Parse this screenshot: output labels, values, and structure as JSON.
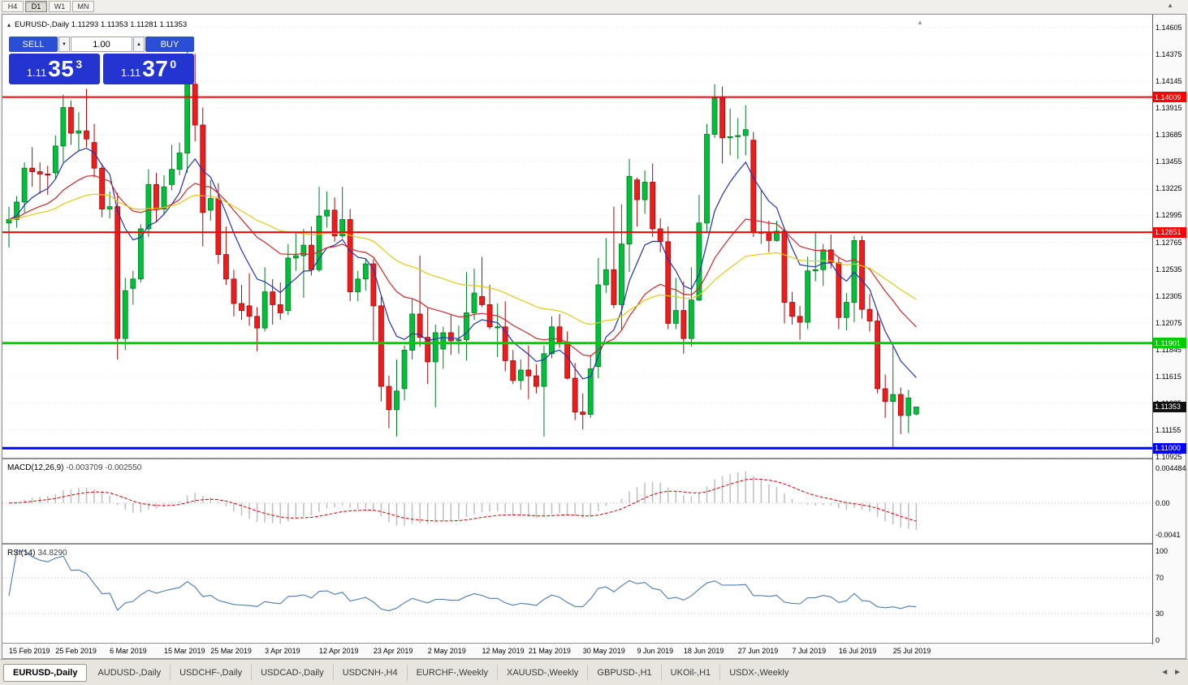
{
  "toolbar": {
    "timeframes": [
      {
        "label": "H4",
        "active": false
      },
      {
        "label": "D1",
        "active": true
      },
      {
        "label": "W1",
        "active": false
      },
      {
        "label": "MN",
        "active": false
      }
    ]
  },
  "icons": {
    "panel_toggle": "▴",
    "scroll_up": "▲",
    "shift_marker": "▲",
    "vol_down": "▼",
    "vol_up": "▲",
    "tab_left": "◄",
    "tab_right": "►"
  },
  "chart_header": {
    "title": "EURUSD-,Daily 1.11293 1.11353 1.11281 1.11353"
  },
  "trade_panel": {
    "sell_label": "SELL",
    "buy_label": "BUY",
    "volume": "1.00",
    "sell_price_main": "1.11",
    "sell_price_pips": "35",
    "sell_price_pt": "3",
    "buy_price_main": "1.11",
    "buy_price_pips": "37",
    "buy_price_pt": "0"
  },
  "price_axis": {
    "max": 1.14605,
    "min": 1.10925,
    "ticks": [
      "1.14605",
      "1.14375",
      "1.14145",
      "1.13915",
      "1.13685",
      "1.13455",
      "1.13225",
      "1.12995",
      "1.12765",
      "1.12535",
      "1.12305",
      "1.12075",
      "1.11845",
      "1.11615",
      "1.11385",
      "1.11155",
      "1.10925"
    ],
    "current_badge": {
      "label": "1.11353",
      "value": 1.11353,
      "bg": "#111111"
    }
  },
  "levels": [
    {
      "label": "1.14009",
      "value": 1.14009,
      "color": "#ff0000",
      "width": 2
    },
    {
      "label": "1.12851",
      "value": 1.12851,
      "color": "#ff0000",
      "width": 2
    },
    {
      "label": "1.11901",
      "value": 1.11901,
      "color": "#00cc00",
      "width": 3
    },
    {
      "label": "1.11000",
      "value": 1.11,
      "color": "#0000ff",
      "width": 3
    }
  ],
  "macd_panel": {
    "label": "MACD(12,26,9)",
    "values": "-0.003709 -0.002550",
    "axis": [
      {
        "label": "0.004484",
        "value": 0.004484
      },
      {
        "label": "0.00",
        "value": 0
      },
      {
        "label": "-0.0041",
        "value": -0.0041
      }
    ]
  },
  "rsi_panel": {
    "label": "RSI(14)",
    "value": "34.8290",
    "axis": [
      {
        "label": "100",
        "value": 100
      },
      {
        "label": "70",
        "value": 70
      },
      {
        "label": "30",
        "value": 30
      },
      {
        "label": "0",
        "value": 0
      }
    ],
    "levels": [
      70,
      30
    ]
  },
  "chart_data": {
    "type": "candlestick",
    "title": "EURUSD-,Daily",
    "ylim": [
      1.10925,
      1.14605
    ],
    "colors": {
      "bull": "#00bf3a",
      "bull_border": "#007a24",
      "bear": "#ef1c1c",
      "bear_border": "#9c0d0d"
    },
    "ma": [
      {
        "period": 8,
        "color": "#2233b0"
      },
      {
        "period": 21,
        "color": "#cc2929"
      },
      {
        "period": 45,
        "color": "#e2ca12"
      }
    ],
    "macd_params": {
      "fast": 12,
      "slow": 26,
      "signal": 9
    },
    "rsi_period": 14,
    "x_labels": [
      {
        "label": "15 Feb 2019",
        "index": 0
      },
      {
        "label": "25 Feb 2019",
        "index": 6
      },
      {
        "label": "6 Mar 2019",
        "index": 13
      },
      {
        "label": "15 Mar 2019",
        "index": 20
      },
      {
        "label": "25 Mar 2019",
        "index": 26
      },
      {
        "label": "3 Apr 2019",
        "index": 33
      },
      {
        "label": "12 Apr 2019",
        "index": 40
      },
      {
        "label": "23 Apr 2019",
        "index": 47
      },
      {
        "label": "2 May 2019",
        "index": 54
      },
      {
        "label": "12 May 2019",
        "index": 61
      },
      {
        "label": "21 May 2019",
        "index": 67
      },
      {
        "label": "30 May 2019",
        "index": 74
      },
      {
        "label": "9 Jun 2019",
        "index": 81
      },
      {
        "label": "18 Jun 2019",
        "index": 87
      },
      {
        "label": "27 Jun 2019",
        "index": 94
      },
      {
        "label": "7 Jul 2019",
        "index": 101
      },
      {
        "label": "16 Jul 2019",
        "index": 107
      },
      {
        "label": "25 Jul 2019",
        "index": 114
      }
    ],
    "ohlc": [
      [
        1.1293,
        1.1307,
        1.1272,
        1.1296
      ],
      [
        1.1296,
        1.1316,
        1.1289,
        1.1311
      ],
      [
        1.1311,
        1.1345,
        1.1302,
        1.134
      ],
      [
        1.134,
        1.1358,
        1.1324,
        1.1337
      ],
      [
        1.1337,
        1.1345,
        1.1318,
        1.1335
      ],
      [
        1.1335,
        1.1342,
        1.1317,
        1.1334
      ],
      [
        1.1336,
        1.1368,
        1.1331,
        1.1359
      ],
      [
        1.1359,
        1.1403,
        1.1345,
        1.1392
      ],
      [
        1.1392,
        1.1398,
        1.136,
        1.137
      ],
      [
        1.137,
        1.1388,
        1.1355,
        1.1372
      ],
      [
        1.1372,
        1.1408,
        1.1358,
        1.1365
      ],
      [
        1.1362,
        1.1378,
        1.1332,
        1.134
      ],
      [
        1.134,
        1.1344,
        1.1298,
        1.1305
      ],
      [
        1.1305,
        1.132,
        1.1297,
        1.1307
      ],
      [
        1.1307,
        1.1319,
        1.1176,
        1.1194
      ],
      [
        1.1194,
        1.1246,
        1.1184,
        1.1235
      ],
      [
        1.1237,
        1.1252,
        1.1223,
        1.1245
      ],
      [
        1.1245,
        1.1292,
        1.1242,
        1.1288
      ],
      [
        1.1288,
        1.1339,
        1.1281,
        1.1326
      ],
      [
        1.1326,
        1.1336,
        1.1294,
        1.1305
      ],
      [
        1.1305,
        1.1334,
        1.1301,
        1.1324
      ],
      [
        1.1326,
        1.136,
        1.1321,
        1.1339
      ],
      [
        1.1339,
        1.1362,
        1.1334,
        1.1353
      ],
      [
        1.1353,
        1.1448,
        1.1336,
        1.1412
      ],
      [
        1.1412,
        1.1438,
        1.1363,
        1.1377
      ],
      [
        1.1377,
        1.1392,
        1.1273,
        1.1302
      ],
      [
        1.1304,
        1.133,
        1.1295,
        1.1314
      ],
      [
        1.1314,
        1.1327,
        1.1258,
        1.1266
      ],
      [
        1.1266,
        1.129,
        1.124,
        1.1245
      ],
      [
        1.1245,
        1.1253,
        1.1213,
        1.1224
      ],
      [
        1.1224,
        1.124,
        1.121,
        1.1218
      ],
      [
        1.1222,
        1.125,
        1.1205,
        1.1213
      ],
      [
        1.1213,
        1.1221,
        1.1183,
        1.1203
      ],
      [
        1.1203,
        1.1255,
        1.12,
        1.1234
      ],
      [
        1.1234,
        1.1245,
        1.1206,
        1.1223
      ],
      [
        1.1223,
        1.1242,
        1.121,
        1.1216
      ],
      [
        1.1218,
        1.1275,
        1.1214,
        1.1263
      ],
      [
        1.1263,
        1.1285,
        1.1252,
        1.1265
      ],
      [
        1.1265,
        1.1288,
        1.1229,
        1.1274
      ],
      [
        1.1274,
        1.129,
        1.1248,
        1.1253
      ],
      [
        1.1253,
        1.1324,
        1.1251,
        1.1299
      ],
      [
        1.1299,
        1.132,
        1.1289,
        1.1304
      ],
      [
        1.1304,
        1.1315,
        1.1277,
        1.1282
      ],
      [
        1.1282,
        1.1324,
        1.128,
        1.1296
      ],
      [
        1.1296,
        1.1305,
        1.1226,
        1.1234
      ],
      [
        1.1234,
        1.1252,
        1.1226,
        1.1245
      ],
      [
        1.1245,
        1.1262,
        1.1235,
        1.1258
      ],
      [
        1.1258,
        1.1262,
        1.1192,
        1.1222
      ],
      [
        1.1222,
        1.123,
        1.114,
        1.1153
      ],
      [
        1.1153,
        1.1162,
        1.1117,
        1.1133
      ],
      [
        1.1133,
        1.1176,
        1.111,
        1.1149
      ],
      [
        1.1151,
        1.1188,
        1.1141,
        1.1184
      ],
      [
        1.1184,
        1.1228,
        1.1176,
        1.1215
      ],
      [
        1.1215,
        1.1265,
        1.1187,
        1.1195
      ],
      [
        1.1195,
        1.122,
        1.1155,
        1.1174
      ],
      [
        1.1174,
        1.1206,
        1.1135,
        1.1199
      ],
      [
        1.1185,
        1.1204,
        1.1168,
        1.1199
      ],
      [
        1.1199,
        1.1214,
        1.118,
        1.1192
      ],
      [
        1.1192,
        1.1205,
        1.1181,
        1.1193
      ],
      [
        1.1193,
        1.1251,
        1.1175,
        1.1216
      ],
      [
        1.1216,
        1.1254,
        1.121,
        1.1233
      ],
      [
        1.123,
        1.1264,
        1.1221,
        1.1223
      ],
      [
        1.1223,
        1.124,
        1.1202,
        1.1204
      ],
      [
        1.1204,
        1.1224,
        1.1178,
        1.1204
      ],
      [
        1.1204,
        1.1226,
        1.1166,
        1.1175
      ],
      [
        1.1175,
        1.1184,
        1.1155,
        1.1158
      ],
      [
        1.1158,
        1.1176,
        1.115,
        1.1167
      ],
      [
        1.1167,
        1.1188,
        1.1142,
        1.1162
      ],
      [
        1.1162,
        1.1172,
        1.1147,
        1.1153
      ],
      [
        1.1153,
        1.1188,
        1.111,
        1.1181
      ],
      [
        1.1181,
        1.1213,
        1.1177,
        1.1204
      ],
      [
        1.1204,
        1.1215,
        1.1186,
        1.1191
      ],
      [
        1.1191,
        1.12,
        1.1159,
        1.116
      ],
      [
        1.116,
        1.1173,
        1.1124,
        1.1131
      ],
      [
        1.1131,
        1.1147,
        1.1116,
        1.1129
      ],
      [
        1.1129,
        1.118,
        1.1126,
        1.1168
      ],
      [
        1.117,
        1.1263,
        1.116,
        1.124
      ],
      [
        1.124,
        1.128,
        1.1233,
        1.1253
      ],
      [
        1.1253,
        1.1307,
        1.122,
        1.1223
      ],
      [
        1.1223,
        1.1309,
        1.1201,
        1.1275
      ],
      [
        1.1275,
        1.1348,
        1.1251,
        1.1333
      ],
      [
        1.133,
        1.1332,
        1.129,
        1.1313
      ],
      [
        1.1313,
        1.1338,
        1.1301,
        1.1328
      ],
      [
        1.1328,
        1.1344,
        1.1281,
        1.1288
      ],
      [
        1.1288,
        1.1297,
        1.1268,
        1.1277
      ],
      [
        1.1277,
        1.129,
        1.1202,
        1.1207
      ],
      [
        1.1207,
        1.1246,
        1.1202,
        1.1218
      ],
      [
        1.1218,
        1.1243,
        1.1181,
        1.1194
      ],
      [
        1.1194,
        1.1255,
        1.1187,
        1.1227
      ],
      [
        1.1227,
        1.1317,
        1.1226,
        1.1293
      ],
      [
        1.1293,
        1.1378,
        1.1285,
        1.1369
      ],
      [
        1.1369,
        1.1412,
        1.1366,
        1.14
      ],
      [
        1.14,
        1.141,
        1.1344,
        1.1366
      ],
      [
        1.1366,
        1.1391,
        1.1351,
        1.1367
      ],
      [
        1.1367,
        1.1383,
        1.1348,
        1.1368
      ],
      [
        1.1368,
        1.1394,
        1.1351,
        1.1373
      ],
      [
        1.1364,
        1.1371,
        1.1281,
        1.1285
      ],
      [
        1.1285,
        1.1322,
        1.1275,
        1.1285
      ],
      [
        1.1285,
        1.1295,
        1.1268,
        1.1278
      ],
      [
        1.1278,
        1.1295,
        1.1277,
        1.1286
      ],
      [
        1.1286,
        1.1289,
        1.1207,
        1.1225
      ],
      [
        1.1225,
        1.1234,
        1.1206,
        1.1213
      ],
      [
        1.1213,
        1.1222,
        1.1193,
        1.1208
      ],
      [
        1.1208,
        1.1264,
        1.1202,
        1.1252
      ],
      [
        1.1252,
        1.1285,
        1.1243,
        1.1253
      ],
      [
        1.1253,
        1.1275,
        1.1239,
        1.127
      ],
      [
        1.127,
        1.1283,
        1.1254,
        1.1259
      ],
      [
        1.1259,
        1.1264,
        1.1202,
        1.1212
      ],
      [
        1.1212,
        1.1233,
        1.1201,
        1.1225
      ],
      [
        1.1225,
        1.1282,
        1.1208,
        1.1278
      ],
      [
        1.1278,
        1.1282,
        1.1211,
        1.1219
      ],
      [
        1.1219,
        1.1232,
        1.12,
        1.1209
      ],
      [
        1.1209,
        1.1218,
        1.1147,
        1.1151
      ],
      [
        1.1151,
        1.1163,
        1.1126,
        1.114
      ],
      [
        1.114,
        1.1187,
        1.1101,
        1.1146
      ],
      [
        1.1146,
        1.1152,
        1.1112,
        1.1128
      ],
      [
        1.1128,
        1.115,
        1.1113,
        1.1143
      ],
      [
        1.11293,
        1.11353,
        1.11281,
        1.11353
      ]
    ]
  },
  "tabs": {
    "items": [
      {
        "label": "EURUSD-,Daily",
        "active": true
      },
      {
        "label": "AUDUSD-,Daily",
        "active": false
      },
      {
        "label": "USDCHF-,Daily",
        "active": false
      },
      {
        "label": "USDCAD-,Daily",
        "active": false
      },
      {
        "label": "USDCNH-,H4",
        "active": false
      },
      {
        "label": "EURCHF-,Weekly",
        "active": false
      },
      {
        "label": "XAUUSD-,Weekly",
        "active": false
      },
      {
        "label": "GBPUSD-,H1",
        "active": false
      },
      {
        "label": "UKOil-,H1",
        "active": false
      },
      {
        "label": "USDX-,Weekly",
        "active": false
      }
    ]
  }
}
